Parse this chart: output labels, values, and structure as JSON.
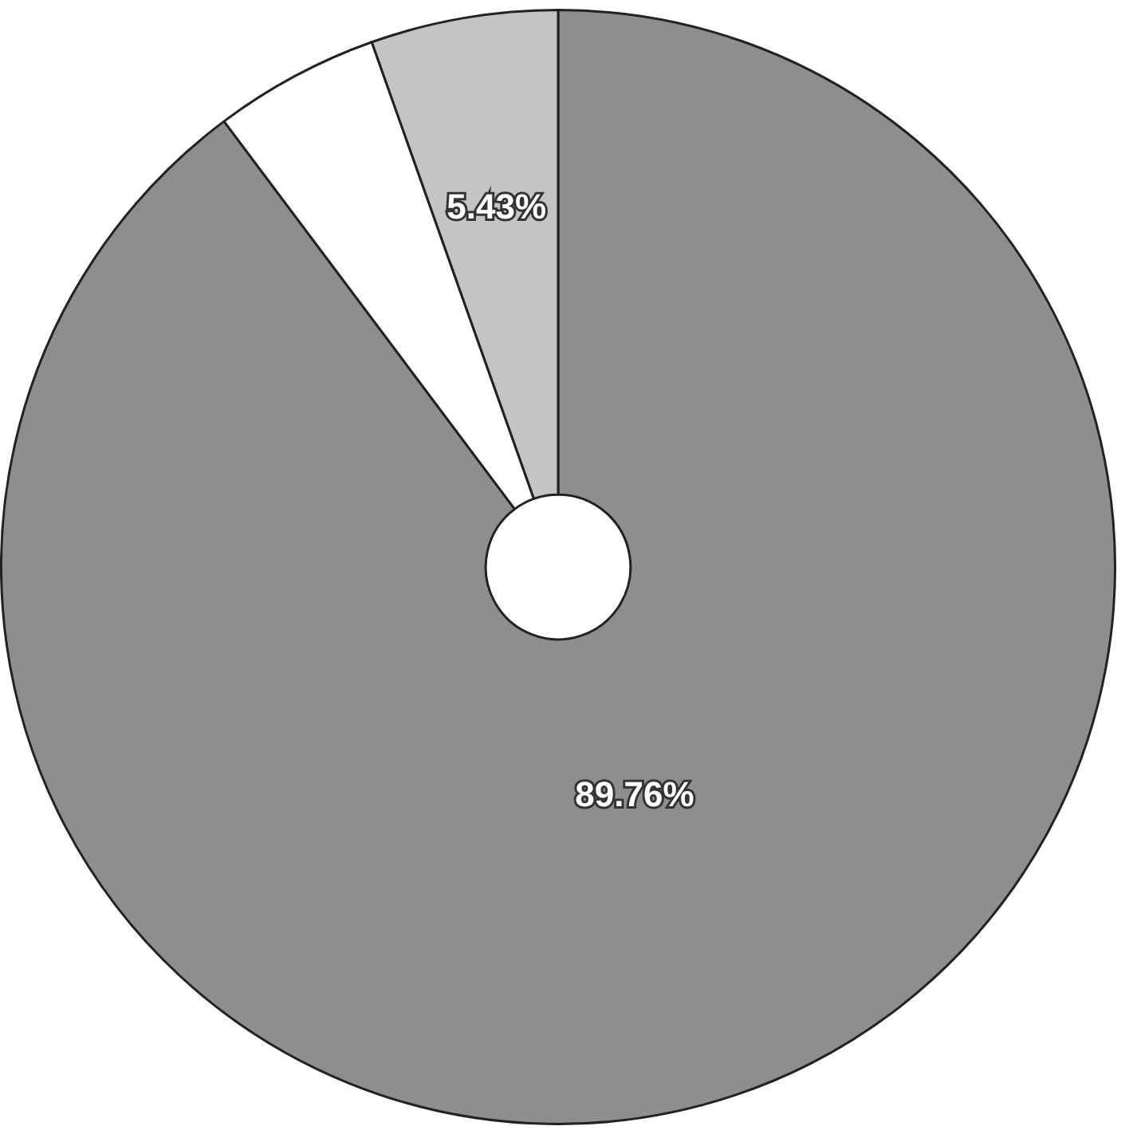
{
  "chart_data": {
    "type": "donut",
    "categories": [
      null,
      null,
      null
    ],
    "values": [
      89.76,
      4.81,
      5.43
    ],
    "colors": [
      "#8e8e8e",
      "#ffffff",
      "#c4c4c4"
    ],
    "value_labels": [
      "89.76%",
      null,
      "5.43%"
    ],
    "legend": false
  }
}
